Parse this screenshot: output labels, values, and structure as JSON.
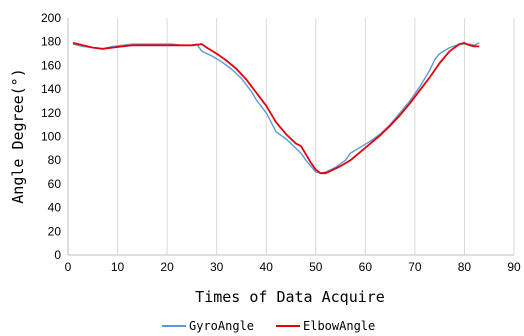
{
  "chart_data": {
    "type": "line",
    "title": "",
    "xlabel": "Times of Data Acquire",
    "ylabel": "Angle Degree(°)",
    "xlim": [
      0,
      90
    ],
    "ylim": [
      0,
      200
    ],
    "x_ticks": [
      0,
      10,
      20,
      30,
      40,
      50,
      60,
      70,
      80,
      90
    ],
    "y_ticks": [
      0,
      20,
      40,
      60,
      80,
      100,
      120,
      140,
      160,
      180,
      200
    ],
    "grid": "vertical",
    "legend": "bottom",
    "series": [
      {
        "name": "GyroAngle",
        "color": "#5b9bd5",
        "points": [
          [
            1,
            178
          ],
          [
            3,
            176
          ],
          [
            5,
            175
          ],
          [
            7,
            174
          ],
          [
            9,
            176
          ],
          [
            11,
            177
          ],
          [
            13,
            178
          ],
          [
            15,
            178
          ],
          [
            17,
            178
          ],
          [
            19,
            178
          ],
          [
            21,
            178
          ],
          [
            23,
            177
          ],
          [
            25,
            177
          ],
          [
            26,
            178
          ],
          [
            27,
            172
          ],
          [
            29,
            168
          ],
          [
            31,
            163
          ],
          [
            33,
            157
          ],
          [
            35,
            149
          ],
          [
            37,
            138
          ],
          [
            38,
            131
          ],
          [
            40,
            120
          ],
          [
            41,
            112
          ],
          [
            42,
            104
          ],
          [
            44,
            98
          ],
          [
            45,
            94
          ],
          [
            47,
            86
          ],
          [
            48,
            80
          ],
          [
            49,
            75
          ],
          [
            50,
            70
          ],
          [
            51,
            69
          ],
          [
            52,
            70
          ],
          [
            53,
            72
          ],
          [
            54,
            74
          ],
          [
            56,
            80
          ],
          [
            57,
            86
          ],
          [
            59,
            91
          ],
          [
            61,
            96
          ],
          [
            63,
            102
          ],
          [
            65,
            110
          ],
          [
            67,
            120
          ],
          [
            69,
            130
          ],
          [
            71,
            142
          ],
          [
            73,
            156
          ],
          [
            74,
            165
          ],
          [
            75,
            170
          ],
          [
            77,
            175
          ],
          [
            79,
            178
          ],
          [
            81,
            178
          ],
          [
            82,
            177
          ],
          [
            83,
            179
          ]
        ]
      },
      {
        "name": "ElbowAngle",
        "color": "#e3000b",
        "points": [
          [
            1,
            179
          ],
          [
            3,
            177
          ],
          [
            5,
            175
          ],
          [
            7,
            174
          ],
          [
            9,
            175
          ],
          [
            11,
            176
          ],
          [
            13,
            177
          ],
          [
            15,
            177
          ],
          [
            17,
            177
          ],
          [
            19,
            177
          ],
          [
            21,
            177
          ],
          [
            23,
            177
          ],
          [
            25,
            177
          ],
          [
            27,
            178
          ],
          [
            28,
            175
          ],
          [
            30,
            170
          ],
          [
            32,
            164
          ],
          [
            34,
            157
          ],
          [
            36,
            148
          ],
          [
            38,
            137
          ],
          [
            40,
            126
          ],
          [
            42,
            112
          ],
          [
            44,
            102
          ],
          [
            46,
            94
          ],
          [
            47,
            92
          ],
          [
            48,
            85
          ],
          [
            49,
            78
          ],
          [
            50,
            72
          ],
          [
            51,
            69
          ],
          [
            52,
            69
          ],
          [
            53,
            71
          ],
          [
            55,
            75
          ],
          [
            57,
            80
          ],
          [
            59,
            87
          ],
          [
            61,
            94
          ],
          [
            63,
            101
          ],
          [
            65,
            109
          ],
          [
            67,
            118
          ],
          [
            69,
            128
          ],
          [
            71,
            139
          ],
          [
            73,
            150
          ],
          [
            75,
            162
          ],
          [
            77,
            172
          ],
          [
            79,
            178
          ],
          [
            80,
            179
          ],
          [
            81,
            177
          ],
          [
            82,
            176
          ],
          [
            83,
            176
          ]
        ]
      }
    ]
  }
}
